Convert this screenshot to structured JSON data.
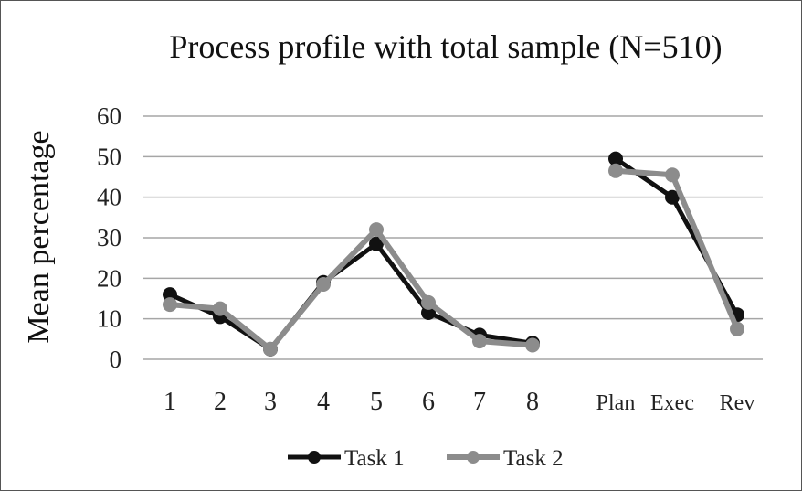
{
  "chart_data": {
    "type": "line",
    "title": "Process profile with total sample (N=510)",
    "xlabel": "",
    "ylabel": "Mean  percentage",
    "ylim": [
      0,
      60
    ],
    "yticks": [
      "0",
      "10",
      "20",
      "30",
      "40",
      "50",
      "60"
    ],
    "grid": true,
    "legend_position": "bottom",
    "categories": [
      "1",
      "2",
      "3",
      "4",
      "5",
      "6",
      "7",
      "8",
      "Plan",
      "Exec",
      "Rev"
    ],
    "segments": [
      [
        0,
        7
      ],
      [
        8,
        10
      ]
    ],
    "series": [
      {
        "name": "Task 1",
        "color": "#111111",
        "values": [
          16,
          10.5,
          2.5,
          19,
          28.5,
          11.5,
          6,
          4,
          49.5,
          40,
          11
        ]
      },
      {
        "name": "Task 2",
        "color": "#8c8c8c",
        "values": [
          13.5,
          12.5,
          2.5,
          18.5,
          32,
          14,
          4.5,
          3.5,
          46.5,
          45.5,
          7.5
        ]
      }
    ]
  }
}
